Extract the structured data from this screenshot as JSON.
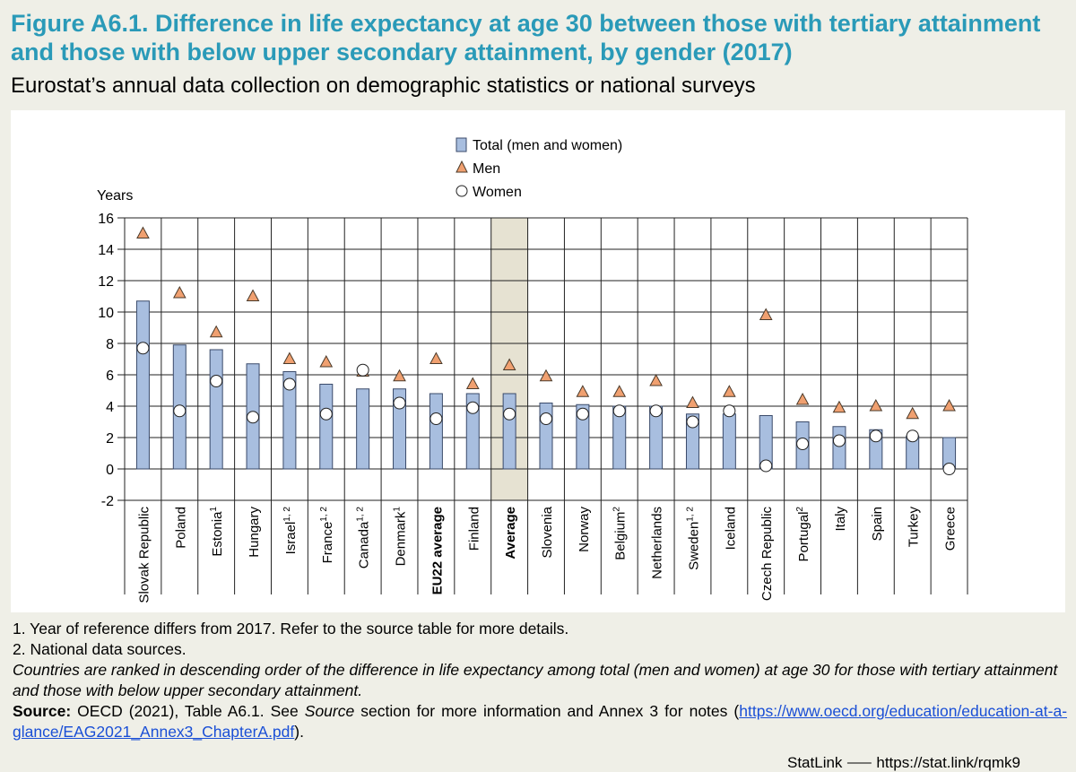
{
  "title": "Figure A6.1. Difference in life expectancy at age 30 between those with tertiary attainment and those with below upper secondary attainment, by gender (2017)",
  "subtitle": "Eurostat’s annual data collection on demographic statistics or national surveys",
  "colors": {
    "title": "#2a9ab8",
    "bar_fill": "#a8bedf",
    "bar_stroke": "#3a4a6a",
    "men_marker": "#f0a070",
    "women_marker": "#ffffff",
    "highlight": "#e6e2d2"
  },
  "chart_data": {
    "type": "bar",
    "ylabel": "Years",
    "ylim": [
      -2,
      16
    ],
    "yticks": [
      16,
      14,
      12,
      10,
      8,
      6,
      4,
      2,
      0,
      -2
    ],
    "legend": {
      "total": "Total (men and women)",
      "men": "Men",
      "women": "Women"
    },
    "highlighted": [
      "Average"
    ],
    "bold": [
      "EU22 average",
      "Average"
    ],
    "categories": [
      {
        "name": "Slovak Republic",
        "sup": ""
      },
      {
        "name": "Poland",
        "sup": ""
      },
      {
        "name": "Estonia",
        "sup": "1"
      },
      {
        "name": "Hungary",
        "sup": ""
      },
      {
        "name": "Israel",
        "sup": "1, 2"
      },
      {
        "name": "France",
        "sup": "1, 2"
      },
      {
        "name": "Canada",
        "sup": "1, 2"
      },
      {
        "name": "Denmark",
        "sup": "1"
      },
      {
        "name": "EU22 average",
        "sup": ""
      },
      {
        "name": "Finland",
        "sup": ""
      },
      {
        "name": "Average",
        "sup": ""
      },
      {
        "name": "Slovenia",
        "sup": ""
      },
      {
        "name": "Norway",
        "sup": ""
      },
      {
        "name": "Belgium",
        "sup": "2"
      },
      {
        "name": "Netherlands",
        "sup": ""
      },
      {
        "name": "Sweden",
        "sup": "1, 2"
      },
      {
        "name": "Iceland",
        "sup": ""
      },
      {
        "name": "Czech Republic",
        "sup": ""
      },
      {
        "name": "Portugal",
        "sup": "2"
      },
      {
        "name": "Italy",
        "sup": ""
      },
      {
        "name": "Spain",
        "sup": ""
      },
      {
        "name": "Turkey",
        "sup": ""
      },
      {
        "name": "Greece",
        "sup": ""
      }
    ],
    "series": [
      {
        "name": "Total (men and women)",
        "values": [
          10.7,
          7.9,
          7.6,
          6.7,
          6.2,
          5.4,
          5.1,
          5.1,
          4.8,
          4.8,
          4.8,
          4.2,
          4.1,
          4.0,
          4.0,
          3.5,
          3.5,
          3.4,
          3.0,
          2.7,
          2.5,
          2.1,
          2.0
        ]
      },
      {
        "name": "Men",
        "values": [
          15.0,
          11.2,
          8.7,
          11.0,
          7.0,
          6.8,
          6.2,
          5.9,
          7.0,
          5.4,
          6.6,
          5.9,
          4.9,
          4.9,
          5.6,
          4.2,
          4.9,
          9.8,
          4.4,
          3.9,
          4.0,
          3.5,
          4.0
        ]
      },
      {
        "name": "Women",
        "values": [
          7.7,
          3.7,
          5.6,
          3.3,
          5.4,
          3.5,
          6.3,
          4.2,
          3.2,
          3.9,
          3.5,
          3.2,
          3.5,
          3.7,
          3.7,
          3.0,
          3.7,
          0.2,
          1.6,
          1.8,
          2.1,
          2.1,
          0.0
        ]
      }
    ]
  },
  "notes": {
    "note1": "1. Year of reference differs from 2017. Refer to the source table for more details.",
    "note2": "2. National data sources.",
    "ranking": "Countries are ranked in descending order of the difference in life expectancy among total (men and women) at age 30 for those with tertiary attainment and those with below upper secondary attainment.",
    "source_label": "Source:",
    "source_text_1": " OECD (2021), Table A6.1. See ",
    "source_italic": "Source",
    "source_text_2": " section for more information and Annex 3 for notes (",
    "source_link": "https://www.oecd.org/education/education-at-a-glance/EAG2021_Annex3_ChapterA.pdf",
    "source_text_3": ")."
  },
  "statlink_fragment": "StatLink ⸺ https://stat.link/rqmk9"
}
